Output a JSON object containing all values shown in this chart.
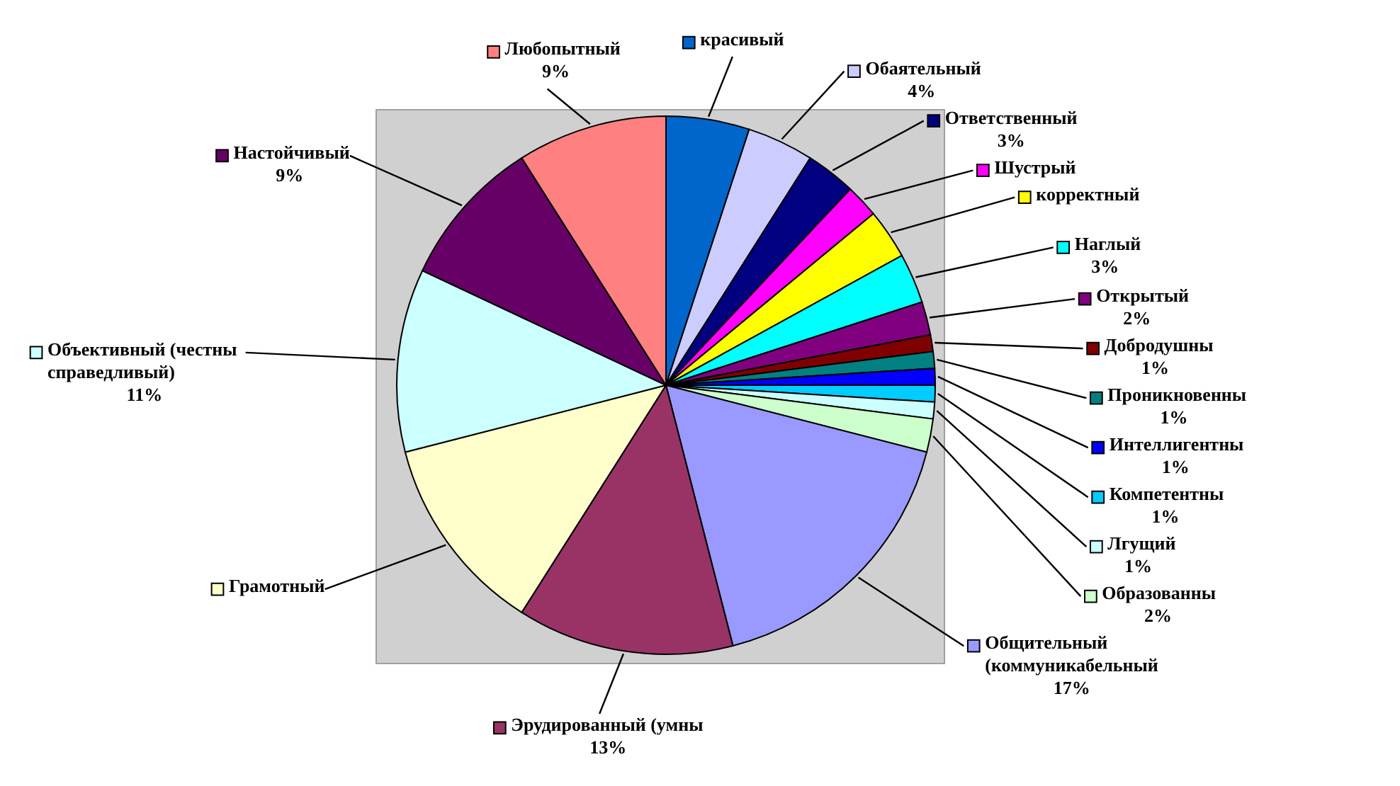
{
  "chart_data": {
    "type": "pie",
    "categories": [
      "красивый",
      "Обаятельный",
      "Ответственный",
      "Шустрый",
      "корректный",
      "Наглый",
      "Открытый",
      "Добродушны",
      "Проникновенны",
      "Интеллигентны",
      "Компетентны",
      "Лгущий",
      "Образованны",
      "Общительный (коммуникабельный",
      "Эрудированный (умны",
      "Грамотный",
      "Объективный (честны справедливый)",
      "Настойчивый",
      "Любопытный"
    ],
    "values": [
      5,
      4,
      3,
      2,
      3,
      3,
      2,
      1,
      1,
      1,
      1,
      1,
      2,
      17,
      13,
      12,
      11,
      9,
      9
    ],
    "value_labels": [
      null,
      "4%",
      "3%",
      null,
      null,
      "3%",
      "2%",
      "1%",
      "1%",
      "1%",
      "1%",
      "1%",
      "2%",
      "17%",
      "13%",
      null,
      "11%",
      "9%",
      "9%"
    ],
    "legend": "top left",
    "colors": [
      "#0066cc",
      "#ccccff",
      "#000080",
      "#ff00ff",
      "#ffff00",
      "#00ffff",
      "#800080",
      "#800000",
      "#008080",
      "#0000ff",
      "#00ccff",
      "#ccffff",
      "#ccffcc",
      "#9999ff",
      "#993366",
      "#ffffcc",
      "#ccffff",
      "#660066",
      "#ff8080"
    ]
  }
}
